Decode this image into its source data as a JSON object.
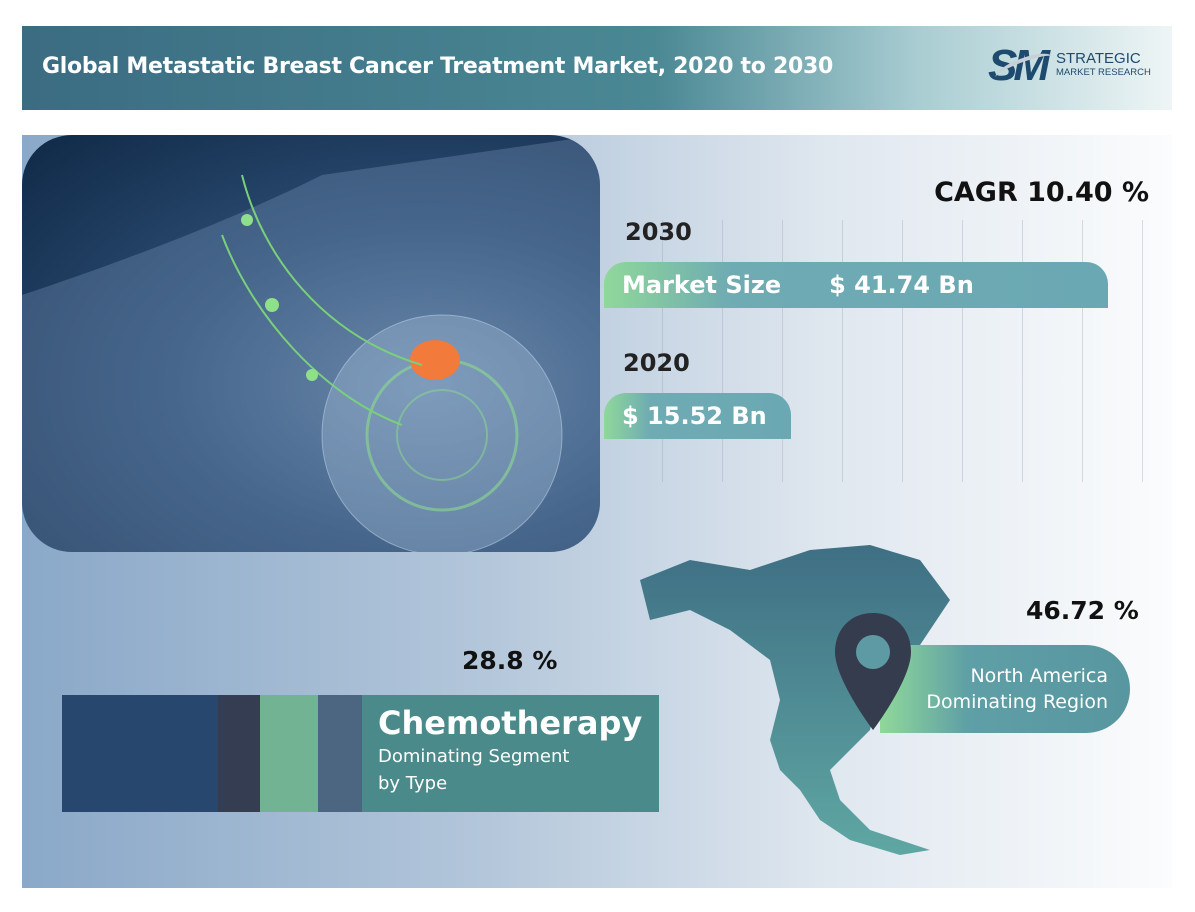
{
  "header": {
    "title": "Global Metastatic Breast Cancer Treatment Market, 2020 to 2030"
  },
  "logo": {
    "mark": "SM",
    "line1": "STRATEGIC",
    "line2": "MARKET RESEARCH"
  },
  "market": {
    "cagr": "CAGR 10.40 %",
    "year_2030": "2030",
    "year_2020": "2020",
    "size_label": "Market Size",
    "value_2030": "$ 41.74 Bn",
    "value_2020": "$ 15.52 Bn"
  },
  "segment": {
    "share": "28.8 %",
    "name": "Chemotherapy",
    "subtitle_1": "Dominating Segment",
    "subtitle_2": "by Type"
  },
  "region": {
    "share": "46.72 %",
    "name": "North America",
    "subtitle": "Dominating Region"
  },
  "colors": {
    "seg1": "#27476e",
    "seg2": "#343d52",
    "seg3": "#72b393",
    "seg4": "#4c6580",
    "accent": "#4a8a8a"
  },
  "chart_data": {
    "type": "bar",
    "orientation": "horizontal",
    "title": "Global Metastatic Breast Cancer Treatment Market, 2020 to 2030",
    "categories": [
      "2030",
      "2020"
    ],
    "values": [
      41.74,
      15.52
    ],
    "unit": "USD Bn",
    "xlim": [
      0,
      45
    ],
    "grid": true
  }
}
